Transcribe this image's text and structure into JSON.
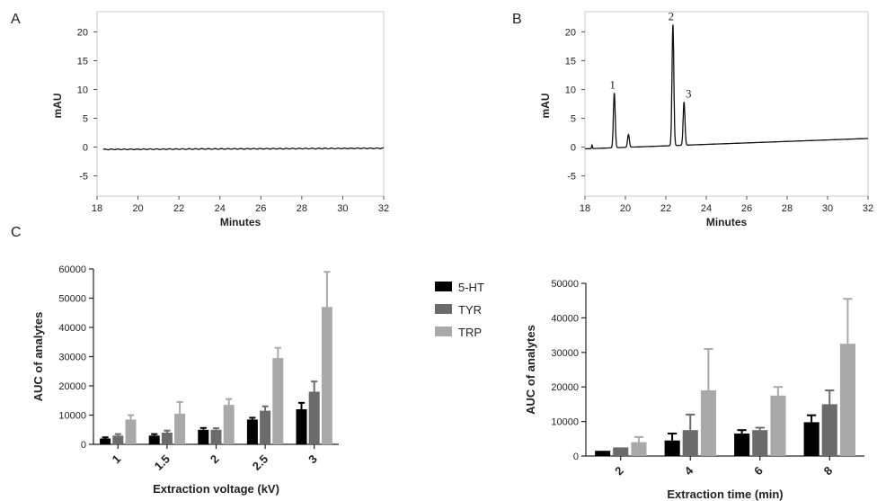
{
  "panels": {
    "a": "A",
    "b": "B",
    "c": "C"
  },
  "legend": [
    {
      "label": "5-HT",
      "color": "#000000"
    },
    {
      "label": "TYR",
      "color": "#6b6b6b"
    },
    {
      "label": "TRP",
      "color": "#a9a9a9"
    }
  ],
  "chart_data": [
    {
      "id": "A",
      "type": "line",
      "xlabel": "Minutes",
      "ylabel": "mAU",
      "xlim": [
        18,
        32
      ],
      "ylim": [
        -8.5,
        23.5
      ],
      "xticks": [
        "18",
        "20",
        "22",
        "24",
        "26",
        "28",
        "30",
        "32"
      ],
      "yticks": [
        "-5",
        "0",
        "5",
        "10",
        "15",
        "20"
      ],
      "series": [
        {
          "x": [
            18.3,
            32
          ],
          "y": [
            -0.4,
            -0.2
          ]
        }
      ]
    },
    {
      "id": "B",
      "type": "line",
      "xlabel": "Minutes",
      "ylabel": "mAU",
      "xlim": [
        18,
        32
      ],
      "ylim": [
        -8.5,
        23.5
      ],
      "xticks": [
        "18",
        "20",
        "22",
        "24",
        "26",
        "28",
        "30",
        "32"
      ],
      "yticks": [
        "-5",
        "0",
        "5",
        "10",
        "15",
        "20"
      ],
      "baseline": {
        "x": [
          18.0,
          32.0
        ],
        "y": [
          -0.3,
          1.5
        ]
      },
      "peaks": [
        {
          "x": 19.45,
          "height": 9.5,
          "label": "1"
        },
        {
          "x": 20.15,
          "height": 2.2,
          "label": ""
        },
        {
          "x": 22.35,
          "height": 21.0,
          "label": "2"
        },
        {
          "x": 22.9,
          "height": 7.5,
          "label": "3"
        }
      ]
    },
    {
      "id": "C-left",
      "type": "bar",
      "xlabel": "Extraction voltage (kV)",
      "ylabel": "AUC of analytes",
      "ylim": [
        0,
        60000
      ],
      "yticks": [
        "0",
        "10000",
        "20000",
        "30000",
        "40000",
        "50000",
        "60000"
      ],
      "categories": [
        "1",
        "1.5",
        "2",
        "2.5",
        "3"
      ],
      "series": [
        {
          "name": "5-HT",
          "values": [
            2000,
            3000,
            5000,
            8500,
            12000
          ],
          "errors": [
            400,
            500,
            600,
            600,
            2200
          ]
        },
        {
          "name": "TYR",
          "values": [
            3000,
            4000,
            5000,
            11500,
            18000
          ],
          "errors": [
            500,
            700,
            500,
            1500,
            3500
          ]
        },
        {
          "name": "TRP",
          "values": [
            8500,
            10500,
            13500,
            29500,
            47000
          ],
          "errors": [
            1500,
            4000,
            2000,
            3500,
            12000
          ]
        }
      ]
    },
    {
      "id": "C-right",
      "type": "bar",
      "xlabel": "Extraction time (min)",
      "ylabel": "AUC of analytes",
      "ylim": [
        0,
        50000
      ],
      "yticks": [
        "0",
        "10000",
        "20000",
        "30000",
        "40000",
        "50000"
      ],
      "categories": [
        "2",
        "4",
        "6",
        "8"
      ],
      "series": [
        {
          "name": "5-HT",
          "values": [
            1500,
            4500,
            6500,
            9800
          ],
          "errors": [
            0,
            2000,
            1000,
            2000
          ]
        },
        {
          "name": "TYR",
          "values": [
            2500,
            7500,
            7500,
            15000
          ],
          "errors": [
            0,
            4500,
            700,
            4000
          ]
        },
        {
          "name": "TRP",
          "values": [
            4000,
            19000,
            17500,
            32500
          ],
          "errors": [
            1500,
            12000,
            2500,
            13000
          ]
        }
      ]
    }
  ]
}
